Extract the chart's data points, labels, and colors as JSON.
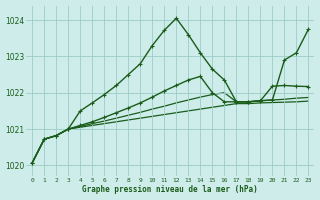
{
  "bg_color": "#ceecea",
  "grid_color": "#9dccc8",
  "line_color": "#1a5c1a",
  "title": "Graphe pression niveau de la mer (hPa)",
  "xlim": [
    -0.5,
    23.5
  ],
  "ylim": [
    1019.7,
    1024.4
  ],
  "yticks": [
    1020,
    1021,
    1022,
    1023,
    1024
  ],
  "xticks": [
    0,
    1,
    2,
    3,
    4,
    5,
    6,
    7,
    8,
    9,
    10,
    11,
    12,
    13,
    14,
    15,
    16,
    17,
    18,
    19,
    20,
    21,
    22,
    23
  ],
  "series": [
    {
      "x": [
        0,
        1,
        2,
        3,
        4,
        5,
        6,
        7,
        8,
        9,
        10,
        11,
        12,
        13,
        14,
        15,
        16,
        17,
        18,
        19,
        20,
        21,
        22,
        23
      ],
      "y": [
        1020.07,
        1020.72,
        1020.82,
        1021.0,
        1021.05,
        1021.1,
        1021.15,
        1021.2,
        1021.25,
        1021.3,
        1021.35,
        1021.4,
        1021.45,
        1021.5,
        1021.55,
        1021.6,
        1021.65,
        1021.7,
        1021.7,
        1021.72,
        1021.73,
        1021.74,
        1021.75,
        1021.77
      ],
      "marker": null,
      "linewidth": 0.9,
      "zorder": 1
    },
    {
      "x": [
        0,
        1,
        2,
        3,
        4,
        5,
        6,
        7,
        8,
        9,
        10,
        11,
        12,
        13,
        14,
        15,
        16,
        17,
        18,
        19,
        20,
        21,
        22,
        23
      ],
      "y": [
        1020.07,
        1020.72,
        1020.82,
        1021.0,
        1021.07,
        1021.15,
        1021.22,
        1021.3,
        1021.38,
        1021.46,
        1021.55,
        1021.63,
        1021.72,
        1021.8,
        1021.88,
        1021.95,
        1022.0,
        1021.75,
        1021.75,
        1021.78,
        1021.8,
        1021.82,
        1021.85,
        1021.87
      ],
      "marker": null,
      "linewidth": 0.9,
      "zorder": 1
    },
    {
      "x": [
        0,
        1,
        2,
        3,
        4,
        5,
        6,
        7,
        8,
        9,
        10,
        11,
        12,
        13,
        14,
        15,
        16,
        17,
        18,
        19,
        20,
        21,
        22,
        23
      ],
      "y": [
        1020.07,
        1020.72,
        1020.82,
        1021.0,
        1021.1,
        1021.2,
        1021.32,
        1021.45,
        1021.58,
        1021.72,
        1021.88,
        1022.05,
        1022.2,
        1022.35,
        1022.45,
        1022.0,
        1021.75,
        1021.75,
        1021.75,
        1021.78,
        1022.18,
        1022.2,
        1022.18,
        1022.17
      ],
      "marker": "+",
      "markersize": 3.5,
      "linewidth": 1.0,
      "zorder": 2
    },
    {
      "x": [
        0,
        1,
        2,
        3,
        4,
        5,
        6,
        7,
        8,
        9,
        10,
        11,
        12,
        13,
        14,
        15,
        16,
        17,
        18,
        19,
        20,
        21,
        22,
        23
      ],
      "y": [
        1020.07,
        1020.72,
        1020.82,
        1021.0,
        1021.5,
        1021.72,
        1021.95,
        1022.2,
        1022.5,
        1022.8,
        1023.3,
        1023.72,
        1024.05,
        1023.6,
        1023.1,
        1022.65,
        1022.35,
        1021.75,
        1021.75,
        1021.78,
        1021.8,
        1022.9,
        1023.1,
        1023.75
      ],
      "marker": "+",
      "markersize": 3.5,
      "linewidth": 1.0,
      "zorder": 2
    }
  ]
}
